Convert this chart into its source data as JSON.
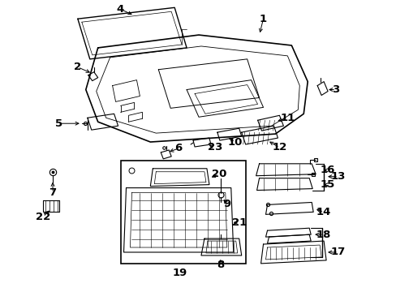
{
  "background_color": "#ffffff",
  "line_color": "#000000",
  "lw_main": 1.0,
  "lw_detail": 0.7,
  "label_fontsize": 9.5,
  "fig_w": 4.89,
  "fig_h": 3.6,
  "dpi": 100
}
